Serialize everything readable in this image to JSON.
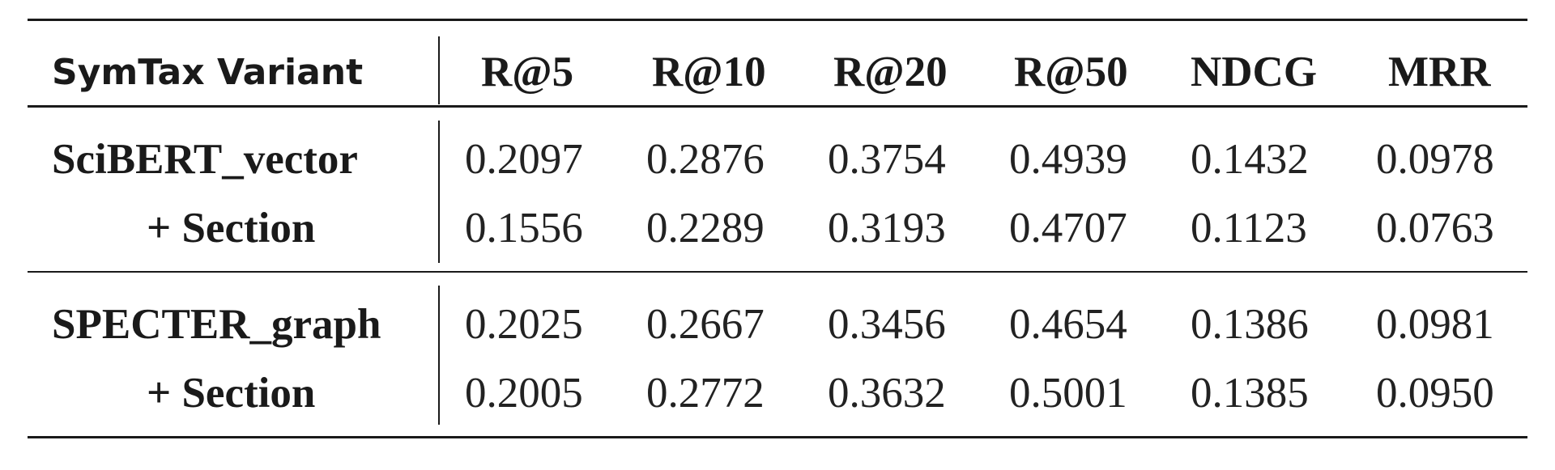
{
  "table": {
    "headers": [
      "SymTax Variant",
      "R@5",
      "R@10",
      "R@20",
      "R@50",
      "NDCG",
      "MRR"
    ],
    "rows": [
      {
        "variant": "SciBERT_vector",
        "values": [
          "0.2097",
          "0.2876",
          "0.3754",
          "0.4939",
          "0.1432",
          "0.0978"
        ]
      },
      {
        "variant": "+ Section",
        "values": [
          "0.1556",
          "0.2289",
          "0.3193",
          "0.4707",
          "0.1123",
          "0.0763"
        ]
      },
      {
        "variant": "SPECTER_graph",
        "values": [
          "0.2025",
          "0.2667",
          "0.3456",
          "0.4654",
          "0.1386",
          "0.0981"
        ]
      },
      {
        "variant": "+ Section",
        "values": [
          "0.2005",
          "0.2772",
          "0.3632",
          "0.5001",
          "0.1385",
          "0.0950"
        ]
      }
    ]
  }
}
